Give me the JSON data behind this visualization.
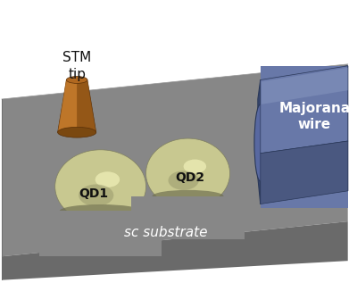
{
  "bg_color": "#ffffff",
  "substrate_top_color": "#878787",
  "substrate_front_color": "#6a6a6a",
  "substrate_edge_color": "#555555",
  "qd_base_color": "#c8c890",
  "qd_highlight_color": "#e8e8b0",
  "qd_mid_color": "#b8b878",
  "qd_shadow_color": "#888860",
  "wire_top_color": "#6878a8",
  "wire_front_color": "#4a5880",
  "wire_highlight_color": "#8898c0",
  "wire_shadow_color": "#384060",
  "tip_main_color": "#b06820",
  "tip_light_color": "#c88030",
  "tip_dark_color": "#7a4810",
  "stm_label": "STM\ntip",
  "qd1_label": "QD1",
  "qd2_label": "QD2",
  "wire_label": "Majorana\nwire",
  "substrate_label": "sc substrate",
  "black": "#111111",
  "white": "#ffffff"
}
